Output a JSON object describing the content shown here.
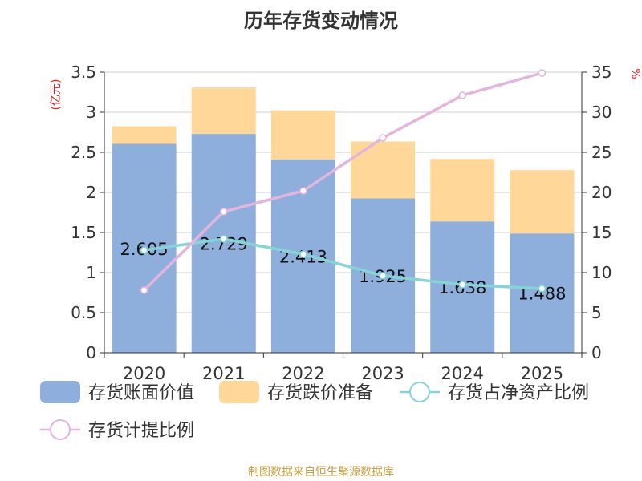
{
  "chart_data": {
    "type": "bar",
    "title": "历年存货变动情况",
    "categories": [
      "2020",
      "2021",
      "2022",
      "2023",
      "2024",
      "2025"
    ],
    "ylabel_left": "(亿元)",
    "ylabel_right": "%",
    "ylim_left": [
      0,
      3.5
    ],
    "ylim_right": [
      0,
      35
    ],
    "yticks_left": [
      "0",
      "0.5",
      "1",
      "1.5",
      "2",
      "2.5",
      "3",
      "3.5"
    ],
    "yticks_right": [
      "0",
      "5",
      "10",
      "15",
      "20",
      "25",
      "30",
      "35"
    ],
    "grid": true,
    "legend_position": "bottom",
    "series": [
      {
        "name": "存货账面价值",
        "kind": "bar",
        "axis": "left",
        "stack": "a",
        "color": "#8eaedb",
        "values": [
          2.605,
          2.729,
          2.413,
          1.925,
          1.638,
          1.488
        ],
        "labels": [
          "2.605",
          "2.729",
          "2.413",
          "1.925",
          "1.638",
          "1.488"
        ]
      },
      {
        "name": "存货跌价准备",
        "kind": "bar",
        "axis": "left",
        "stack": "a",
        "color": "#ffd899",
        "values": [
          0.22,
          0.58,
          0.61,
          0.71,
          0.78,
          0.79
        ]
      },
      {
        "name": "存货占净资产比例",
        "kind": "line",
        "axis": "right",
        "color": "#86d4d6",
        "values": [
          12.8,
          14.2,
          12.3,
          9.6,
          8.5,
          8.0
        ]
      },
      {
        "name": "存货计提比例",
        "kind": "line",
        "axis": "right",
        "color": "#e4b5dc",
        "values": [
          7.8,
          17.6,
          20.2,
          26.8,
          32.1,
          34.9
        ]
      }
    ]
  },
  "source": "制图数据来自恒生聚源数据库"
}
